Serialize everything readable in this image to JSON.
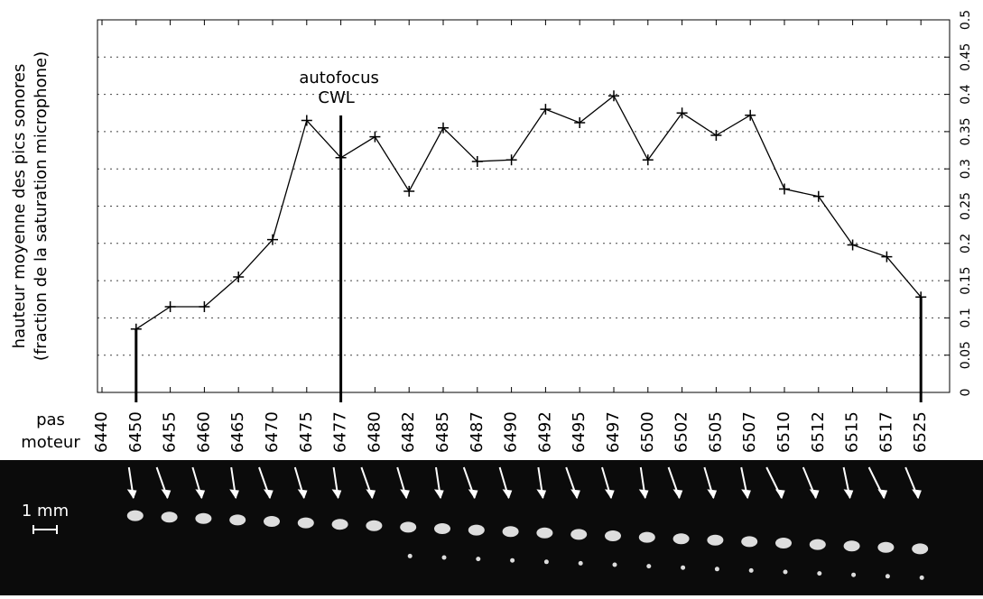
{
  "chart_data": {
    "type": "line",
    "ylabel": [
      "hauteur moyenne des pics sonores",
      "(fraction de la saturation microphone)"
    ],
    "xlabel": [
      "pas",
      "moteur"
    ],
    "categories": [
      "6440",
      "6450",
      "6455",
      "6460",
      "6465",
      "6470",
      "6475",
      "6477",
      "6480",
      "6482",
      "6485",
      "6487",
      "6490",
      "6492",
      "6495",
      "6497",
      "6500",
      "6502",
      "6505",
      "6507",
      "6510",
      "6512",
      "6515",
      "6517",
      "6525"
    ],
    "series": [
      {
        "name": "hauteur",
        "color": "#000000",
        "values": [
          null,
          0.085,
          0.115,
          0.115,
          0.155,
          0.205,
          0.365,
          0.315,
          0.343,
          0.27,
          0.355,
          0.31,
          0.312,
          0.38,
          0.362,
          0.398,
          0.312,
          0.375,
          0.345,
          0.372,
          0.273,
          0.263,
          0.198,
          0.182,
          0.128
        ]
      }
    ],
    "ylim": [
      0,
      0.5
    ],
    "yticks": [
      0,
      0.05,
      0.1,
      0.15,
      0.2,
      0.25,
      0.3,
      0.35,
      0.4,
      0.45,
      0.5
    ],
    "grid": true,
    "annotation": {
      "text": [
        "autofocus",
        "CWL"
      ],
      "category_index": 7
    },
    "scale_bar": "1 mm"
  }
}
